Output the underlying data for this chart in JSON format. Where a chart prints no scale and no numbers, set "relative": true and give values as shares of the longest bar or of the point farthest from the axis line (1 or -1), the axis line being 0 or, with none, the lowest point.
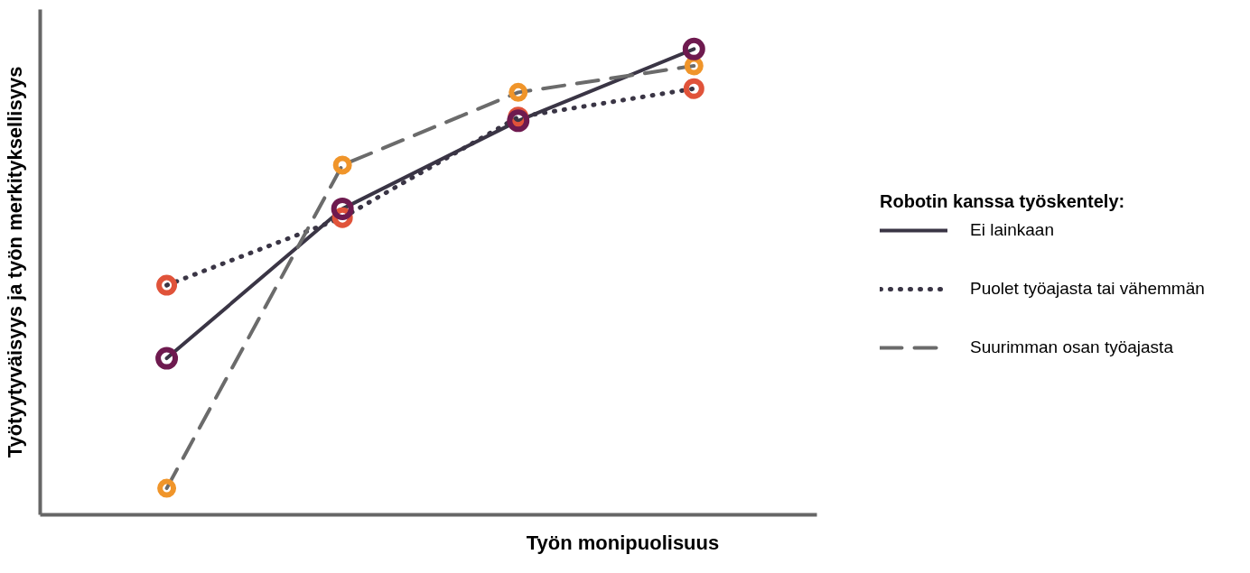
{
  "chart_data": {
    "type": "line",
    "relative": true,
    "xlabel": "Työn monipuolisuus",
    "ylabel": "Työtyytyväisyys ja työn merkityksellisyys",
    "legend_title": "Robotin kanssa työskentely:",
    "legend": "right",
    "grid": false,
    "marker": "circle",
    "categories": [
      null,
      null,
      null,
      null
    ],
    "series": [
      {
        "name": "Ei lainkaan",
        "color": "#3a3545",
        "line_style": "solid",
        "colors": [
          "#6e1a4f",
          "#6e1a4f",
          "#6e1a4f",
          "#6e1a4f"
        ],
        "values": [
          0.336,
          0.657,
          0.846,
          1.0
        ]
      },
      {
        "name": "Puolet työajasta tai vähemmän",
        "color": "#3a3545",
        "line_style": "dotted",
        "colors": [
          "#e0533a",
          "#e0533a",
          "#e0533a",
          "#e0533a"
        ],
        "values": [
          0.493,
          0.638,
          0.854,
          0.915
        ]
      },
      {
        "name": "Suurimman osan työajasta",
        "color": "#6b6b6b",
        "line_style": "dashed",
        "colors": [
          "#f0952a",
          "#f0952a",
          "#f0952a",
          "#f0952a"
        ],
        "values": [
          0.057,
          0.751,
          0.907,
          0.964
        ]
      }
    ]
  }
}
